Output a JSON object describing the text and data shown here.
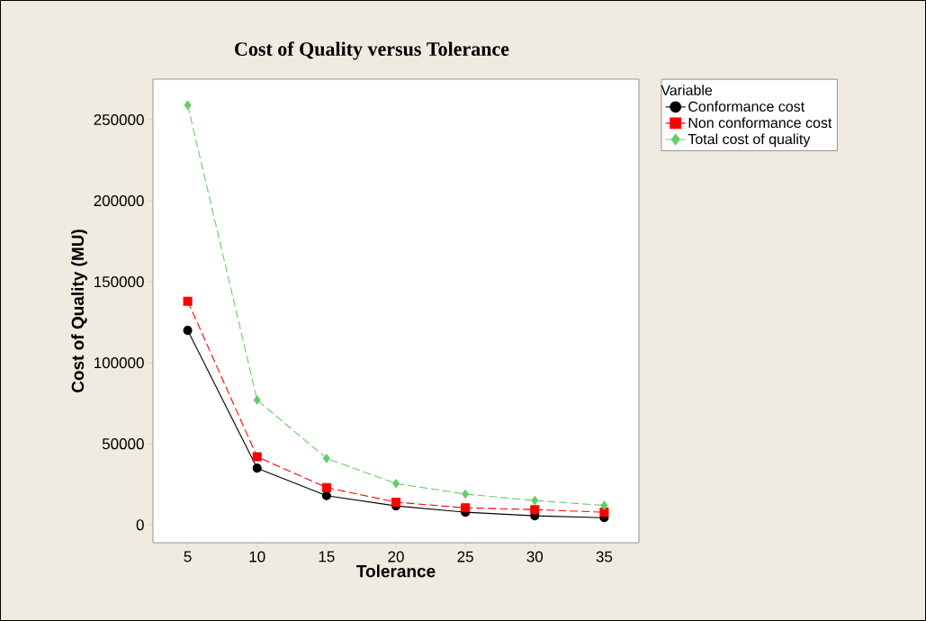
{
  "chart_data": {
    "type": "line",
    "title": "Cost of Quality versus Tolerance",
    "xlabel": "Tolerance",
    "ylabel": "Cost of Quality (MU)",
    "legend_title": "Variable",
    "x": [
      5,
      10,
      15,
      20,
      25,
      30,
      35
    ],
    "series": [
      {
        "name": "Conformance cost",
        "color": "#000000",
        "marker": "circle",
        "line_style": "solid",
        "values": [
          120000,
          35000,
          18000,
          11700,
          7800,
          5600,
          4400
        ]
      },
      {
        "name": "Non conformance cost",
        "color": "#ff0000",
        "marker": "square",
        "line_style": "dashed",
        "values": [
          138000,
          42000,
          23000,
          14000,
          10500,
          9400,
          7800
        ]
      },
      {
        "name": "Total cost of quality",
        "color": "#66cc66",
        "marker": "diamond",
        "line_style": "dashed",
        "values": [
          259000,
          77000,
          41000,
          25500,
          19000,
          15000,
          12000
        ]
      }
    ],
    "xlim": [
      2.5,
      37.5
    ],
    "ylim": [
      -11000,
      275000
    ],
    "xticks": [
      5,
      10,
      15,
      20,
      25,
      30,
      35
    ],
    "yticks": [
      0,
      50000,
      100000,
      150000,
      200000,
      250000
    ],
    "grid": false,
    "legend": "right"
  }
}
